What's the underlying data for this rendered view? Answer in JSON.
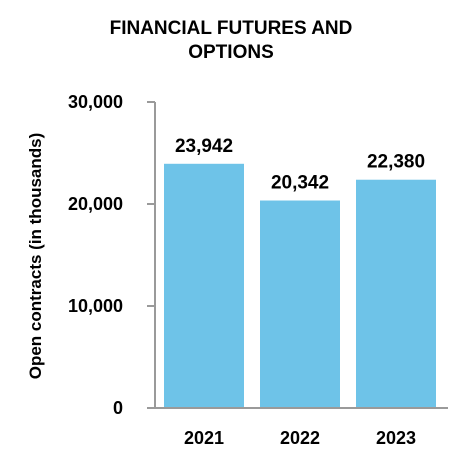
{
  "chart_data": {
    "type": "bar",
    "title_lines": [
      "FINANCIAL FUTURES AND",
      "OPTIONS"
    ],
    "ylabel": "Open contracts (in thousands)",
    "xlabel": "",
    "categories": [
      "2021",
      "2022",
      "2023"
    ],
    "values": [
      23942,
      20342,
      22380
    ],
    "data_labels": [
      "23,942",
      "20,342",
      "22,380"
    ],
    "ylim": [
      0,
      30000
    ],
    "yticks": [
      0,
      10000,
      20000,
      30000
    ],
    "ytick_labels": [
      "0",
      "10,000",
      "20,000",
      "30,000"
    ],
    "grid": false,
    "legend": "none",
    "colors": {
      "bar": "#6EC3E8",
      "axis": "#9a9a9a",
      "text": "#000000"
    }
  }
}
